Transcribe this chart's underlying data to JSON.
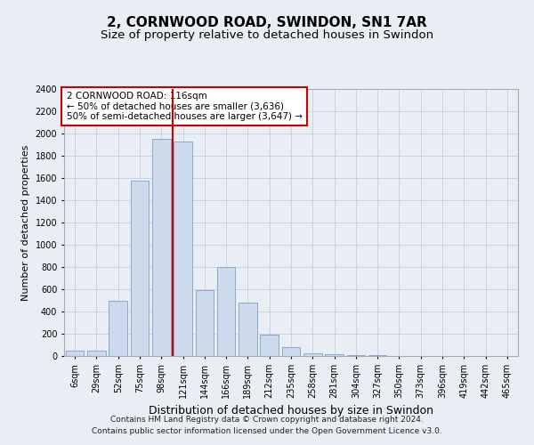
{
  "title": "2, CORNWOOD ROAD, SWINDON, SN1 7AR",
  "subtitle": "Size of property relative to detached houses in Swindon",
  "xlabel": "Distribution of detached houses by size in Swindon",
  "ylabel": "Number of detached properties",
  "footnote1": "Contains HM Land Registry data © Crown copyright and database right 2024.",
  "footnote2": "Contains public sector information licensed under the Open Government Licence v3.0.",
  "bin_labels": [
    "6sqm",
    "29sqm",
    "52sqm",
    "75sqm",
    "98sqm",
    "121sqm",
    "144sqm",
    "166sqm",
    "189sqm",
    "212sqm",
    "235sqm",
    "258sqm",
    "281sqm",
    "304sqm",
    "327sqm",
    "350sqm",
    "373sqm",
    "396sqm",
    "419sqm",
    "442sqm",
    "465sqm"
  ],
  "bar_values": [
    50,
    50,
    500,
    1580,
    1950,
    1930,
    590,
    800,
    480,
    195,
    80,
    25,
    15,
    10,
    5,
    2,
    1,
    1,
    0,
    0,
    0
  ],
  "bar_color": "#ccdaeb",
  "bar_edgecolor": "#88aace",
  "grid_color": "#c8d4e0",
  "vline_x_index": 4.52,
  "vline_color": "#cc0000",
  "annotation_text": "2 CORNWOOD ROAD: 116sqm\n← 50% of detached houses are smaller (3,636)\n50% of semi-detached houses are larger (3,647) →",
  "annotation_box_color": "#ffffff",
  "annotation_box_edgecolor": "#cc0000",
  "ylim": [
    0,
    2400
  ],
  "yticks": [
    0,
    200,
    400,
    600,
    800,
    1000,
    1200,
    1400,
    1600,
    1800,
    2000,
    2200,
    2400
  ],
  "background_color": "#e8eef4",
  "axes_background": "#e8eef4",
  "title_fontsize": 11,
  "subtitle_fontsize": 9.5,
  "ylabel_fontsize": 8,
  "xlabel_fontsize": 9,
  "tick_fontsize": 7,
  "annotation_fontsize": 7.5,
  "footnote_fontsize": 6.5
}
